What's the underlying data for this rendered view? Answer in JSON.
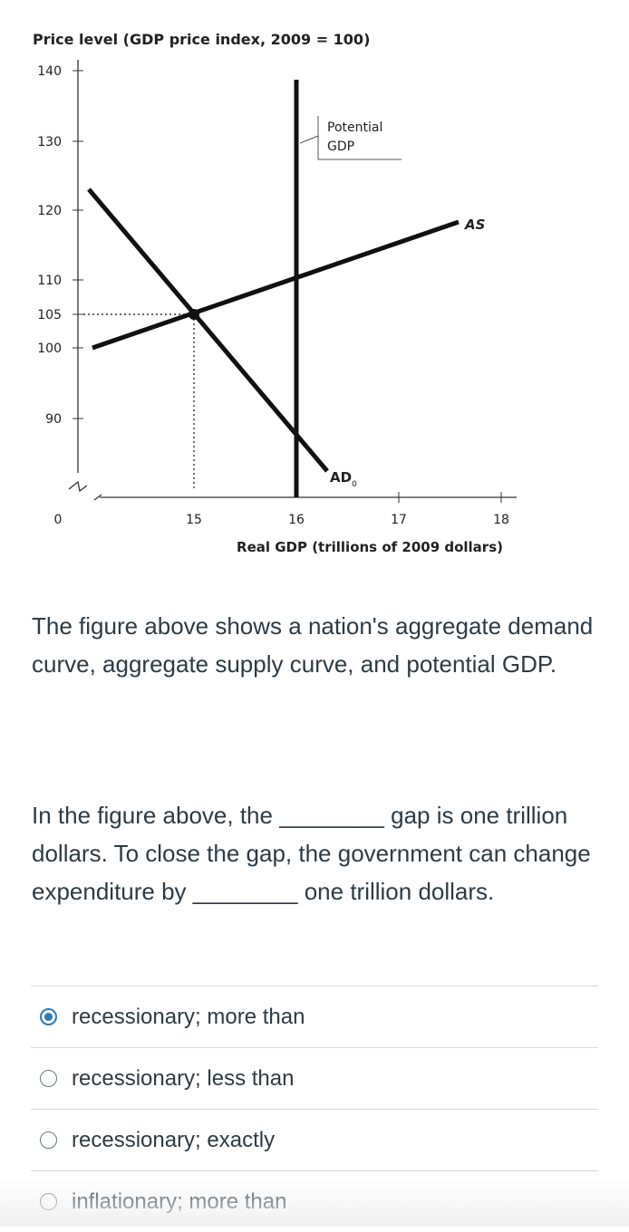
{
  "chart_data": {
    "type": "line",
    "title": "Price level (GDP price index, 2009 = 100)",
    "xlabel": "Real GDP (trillions of 2009 dollars)",
    "ylabel": "Price level (GDP price index, 2009 = 100)",
    "x_ticks": [
      "0",
      "15",
      "16",
      "17",
      "18"
    ],
    "y_ticks": [
      "140",
      "130",
      "120",
      "110",
      "105",
      "100",
      "90"
    ],
    "xlim": [
      14.2,
      18.0
    ],
    "ylim": [
      84,
      140
    ],
    "series": [
      {
        "name": "AS",
        "x": [
          14.2,
          16.0,
          17.6
        ],
        "y": [
          100,
          106.0,
          112.5
        ]
      },
      {
        "name": "AD0",
        "x": [
          14.2,
          15.0,
          16.0,
          16.3
        ],
        "y": [
          122.3,
          105,
          83.0,
          78.0
        ]
      },
      {
        "name": "Potential GDP",
        "x": [
          16.0,
          16.0
        ],
        "y": [
          84,
          139
        ]
      }
    ],
    "equilibrium": {
      "x": 15,
      "y": 105
    },
    "annotations": {
      "potential_line1": "Potential",
      "potential_line2": "GDP",
      "as_label": "AS",
      "ad_label": "AD",
      "ad_subscript": "0"
    }
  },
  "question": {
    "intro": "The figure above shows a nation's aggregate demand curve, aggregate supply curve, and potential GDP.",
    "part1": "In the figure above, the",
    "blank1": "________",
    "part2": "gap is one trillion dollars. To close the gap, the government can change expenditure by",
    "blank2": "________",
    "part3": "one trillion dollars."
  },
  "options": [
    {
      "label": "recessionary; more than",
      "selected": true
    },
    {
      "label": "recessionary; less than",
      "selected": false
    },
    {
      "label": "recessionary; exactly",
      "selected": false
    },
    {
      "label": "inflationary; more than",
      "selected": false
    }
  ],
  "colors": {
    "accent": "#2b7abc",
    "text": "#2d3b45",
    "divider": "#d7dbdf"
  }
}
